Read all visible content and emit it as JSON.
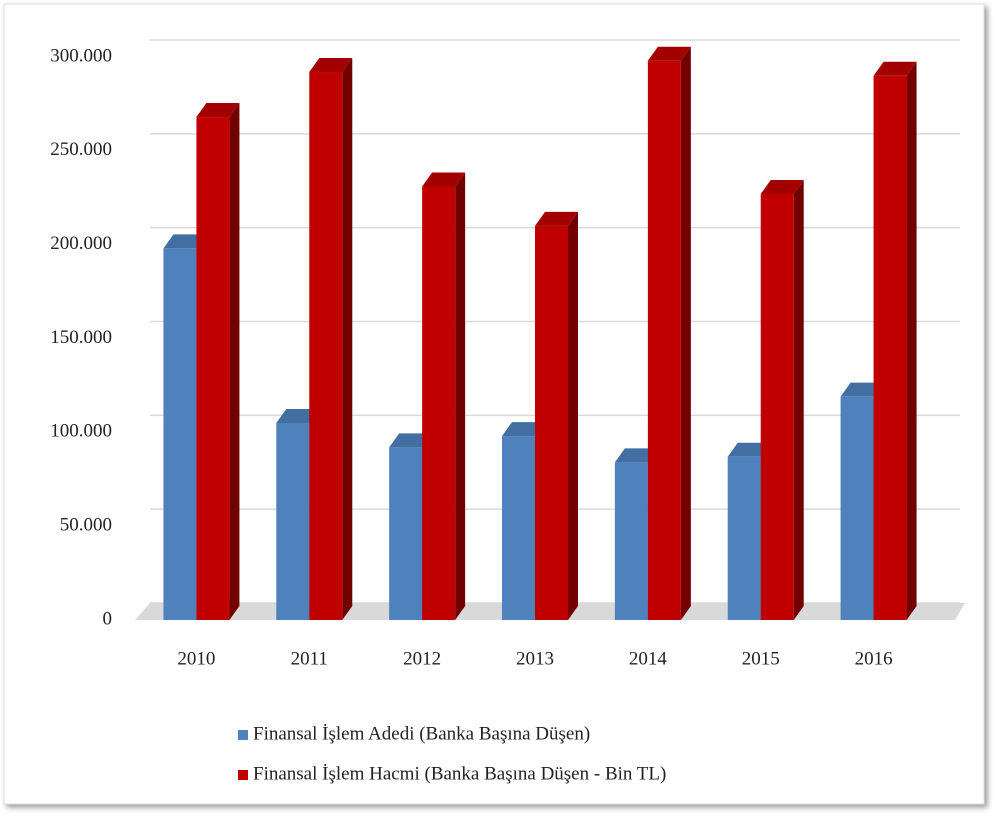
{
  "chart_data": {
    "type": "bar",
    "categories": [
      "2010",
      "2011",
      "2012",
      "2013",
      "2014",
      "2015",
      "2016"
    ],
    "series": [
      {
        "name": "Finansal İşlem Adedi (Banka Başına Düşen)",
        "color": "#4f81bd",
        "values": [
          198000,
          105000,
          92000,
          98000,
          84000,
          87000,
          119000
        ]
      },
      {
        "name": "Finansal İşlem Hacmi (Banka Başına Düşen - Bin TL)",
        "color": "#c00000",
        "values": [
          268000,
          292000,
          231000,
          210000,
          298000,
          227000,
          290000
        ]
      }
    ],
    "ylim": [
      0,
      300000
    ],
    "yticks": [
      0,
      {
        "value": 50000,
        "label": "50.000"
      },
      {
        "value": 100000,
        "label": "100.000"
      },
      {
        "value": 150000,
        "label": "150.000"
      },
      {
        "value": 200000,
        "label": "200.000"
      },
      {
        "value": 250000,
        "label": "250.000"
      },
      {
        "value": 300000,
        "label": "300.000"
      }
    ],
    "grid": true,
    "legend": "bottom"
  }
}
